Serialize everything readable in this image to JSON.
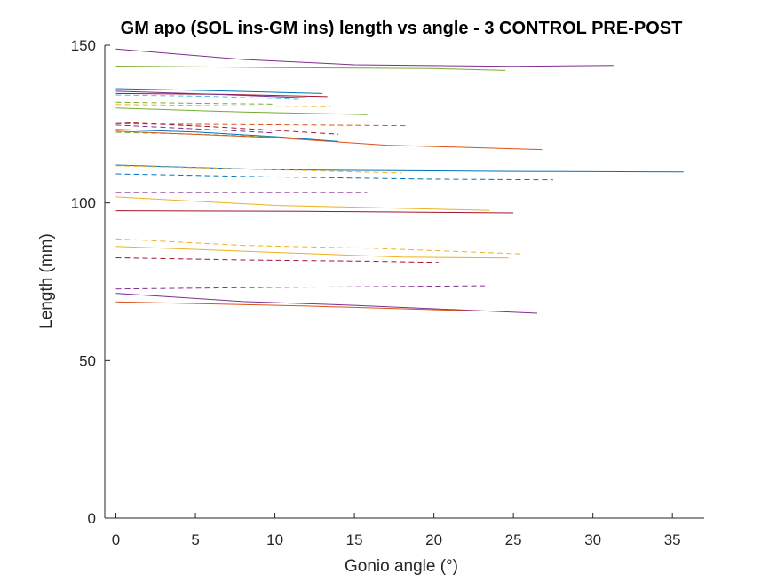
{
  "chart_data": {
    "type": "line",
    "title": "GM apo (SOL ins-GM ins) length vs angle - 3 CONTROL PRE-POST",
    "xlabel": "Gonio angle (°)",
    "ylabel": "Length (mm)",
    "xlim": [
      -0.7,
      37
    ],
    "ylim": [
      0,
      150
    ],
    "xticks": [
      0,
      5,
      10,
      15,
      20,
      25,
      30,
      35
    ],
    "yticks": [
      0,
      50,
      100,
      150
    ],
    "grid": false,
    "series": [
      {
        "color": "#7E2F8E",
        "dash": false,
        "points": [
          [
            0,
            148.8
          ],
          [
            8,
            145.5
          ],
          [
            15,
            143.8
          ],
          [
            25,
            143.3
          ],
          [
            31.3,
            143.6
          ]
        ]
      },
      {
        "color": "#77AC30",
        "dash": false,
        "points": [
          [
            0,
            143.4
          ],
          [
            10,
            142.9
          ],
          [
            20,
            142.6
          ],
          [
            24.5,
            142.0
          ]
        ]
      },
      {
        "color": "#0072BD",
        "dash": false,
        "points": [
          [
            0,
            136.2
          ],
          [
            6,
            135.6
          ],
          [
            13,
            134.7
          ]
        ]
      },
      {
        "color": "#A2142F",
        "dash": false,
        "points": [
          [
            0,
            134.7
          ],
          [
            7,
            134.4
          ],
          [
            13.3,
            133.7
          ]
        ]
      },
      {
        "color": "#7E2F8E",
        "dash": false,
        "points": [
          [
            0,
            135.4
          ],
          [
            6,
            134.5
          ],
          [
            12,
            133.3
          ]
        ]
      },
      {
        "color": "#4DBEEE",
        "dash": true,
        "points": [
          [
            0,
            134.2
          ],
          [
            6,
            133.8
          ],
          [
            11.5,
            132.8
          ]
        ]
      },
      {
        "color": "#EDB120",
        "dash": true,
        "points": [
          [
            0,
            131.2
          ],
          [
            6,
            130.9
          ],
          [
            13.5,
            130.5
          ]
        ]
      },
      {
        "color": "#77AC30",
        "dash": true,
        "points": [
          [
            0,
            131.9
          ],
          [
            5,
            131.6
          ],
          [
            10,
            131.3
          ]
        ]
      },
      {
        "color": "#77AC30",
        "dash": false,
        "points": [
          [
            0,
            130.1
          ],
          [
            8,
            128.8
          ],
          [
            15.8,
            128.0
          ]
        ]
      },
      {
        "color": "#D95319",
        "dash": true,
        "points": [
          [
            0,
            125.1
          ],
          [
            10,
            124.8
          ],
          [
            18.3,
            124.5
          ]
        ]
      },
      {
        "color": "#A2142F",
        "dash": true,
        "points": [
          [
            0,
            125.6
          ],
          [
            6,
            124.2
          ],
          [
            14,
            121.8
          ]
        ]
      },
      {
        "color": "#7E2F8E",
        "dash": true,
        "points": [
          [
            0,
            124.7
          ],
          [
            5,
            123.5
          ],
          [
            10,
            122.2
          ]
        ]
      },
      {
        "color": "#0072BD",
        "dash": false,
        "points": [
          [
            0,
            123.3
          ],
          [
            5,
            122.5
          ],
          [
            10,
            121.0
          ],
          [
            14,
            119.5
          ]
        ]
      },
      {
        "color": "#77AC30",
        "dash": true,
        "points": [
          [
            0,
            122.4
          ],
          [
            5,
            121.8
          ],
          [
            10,
            120.9
          ]
        ]
      },
      {
        "color": "#D95319",
        "dash": false,
        "points": [
          [
            0,
            122.8
          ],
          [
            10,
            120.7
          ],
          [
            17,
            118.3
          ],
          [
            26.8,
            116.9
          ]
        ]
      },
      {
        "color": "#0072BD",
        "dash": false,
        "points": [
          [
            0,
            112.0
          ],
          [
            10,
            110.5
          ],
          [
            25,
            110.0
          ],
          [
            35.7,
            109.8
          ]
        ]
      },
      {
        "color": "#EDB120",
        "dash": true,
        "points": [
          [
            0,
            111.8
          ],
          [
            10,
            110.5
          ],
          [
            18,
            109.5
          ]
        ]
      },
      {
        "color": "#0072BD",
        "dash": true,
        "points": [
          [
            0,
            109.2
          ],
          [
            10,
            108.2
          ],
          [
            20,
            107.5
          ],
          [
            27.5,
            107.3
          ]
        ]
      },
      {
        "color": "#7E2F8E",
        "dash": true,
        "points": [
          [
            0,
            103.3
          ],
          [
            8,
            103.3
          ],
          [
            15.8,
            103.3
          ]
        ]
      },
      {
        "color": "#EDB120",
        "dash": false,
        "points": [
          [
            0,
            101.9
          ],
          [
            10,
            99.2
          ],
          [
            23.5,
            97.6
          ]
        ]
      },
      {
        "color": "#A2142F",
        "dash": false,
        "points": [
          [
            0,
            97.5
          ],
          [
            12,
            97.3
          ],
          [
            25,
            96.8
          ]
        ]
      },
      {
        "color": "#EDB120",
        "dash": true,
        "points": [
          [
            0,
            88.6
          ],
          [
            8,
            86.5
          ],
          [
            16,
            85.6
          ],
          [
            25.5,
            83.8
          ]
        ]
      },
      {
        "color": "#EDB120",
        "dash": false,
        "points": [
          [
            0,
            86.2
          ],
          [
            10,
            84.3
          ],
          [
            18,
            82.8
          ],
          [
            24.7,
            82.5
          ]
        ]
      },
      {
        "color": "#A2142F",
        "dash": true,
        "points": [
          [
            0,
            82.6
          ],
          [
            8,
            81.9
          ],
          [
            16,
            81.5
          ],
          [
            20.3,
            81.1
          ]
        ]
      },
      {
        "color": "#7E2F8E",
        "dash": true,
        "points": [
          [
            0,
            72.7
          ],
          [
            10,
            73.2
          ],
          [
            23.2,
            73.7
          ]
        ]
      },
      {
        "color": "#7E2F8E",
        "dash": false,
        "points": [
          [
            0,
            71.3
          ],
          [
            8,
            68.7
          ],
          [
            15,
            67.5
          ],
          [
            26.5,
            65.0
          ]
        ]
      },
      {
        "color": "#D95319",
        "dash": false,
        "points": [
          [
            0,
            68.6
          ],
          [
            12,
            67.3
          ],
          [
            22.8,
            65.7
          ]
        ]
      }
    ]
  }
}
